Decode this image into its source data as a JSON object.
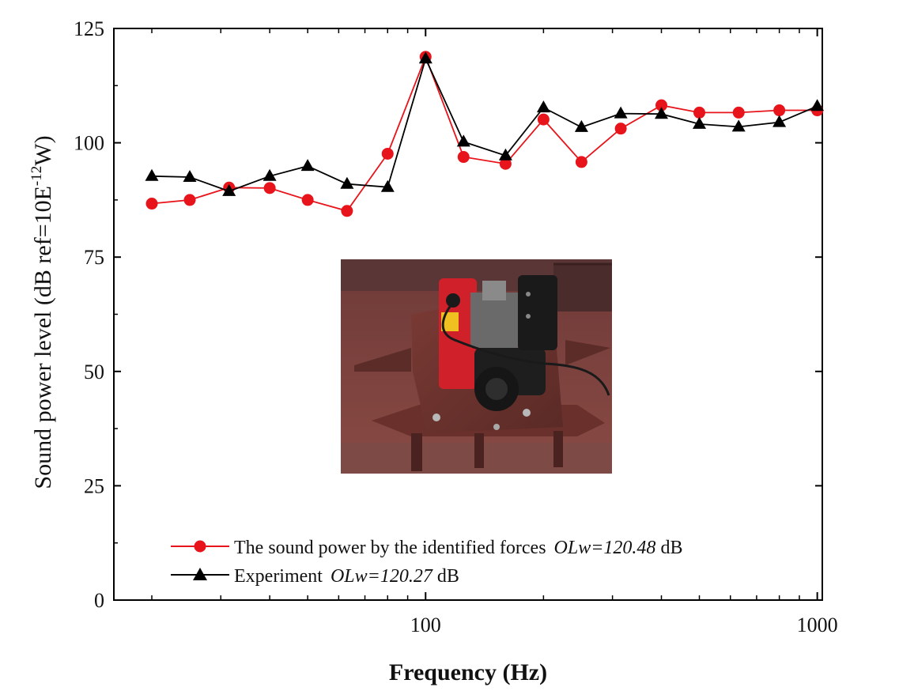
{
  "chart_data": {
    "type": "line",
    "x_scale": "log",
    "xlabel": "Frequency (Hz)",
    "ylabel_parts": {
      "prefix": "Sound power level (dB ref=10E",
      "superscript": "-12",
      "suffix": "W)"
    },
    "xlim": [
      16,
      1030
    ],
    "ylim": [
      0,
      125
    ],
    "x_ticks": [
      100,
      1000
    ],
    "x_tick_labels": [
      "100",
      "1000"
    ],
    "y_ticks": [
      0,
      25,
      50,
      75,
      100,
      125
    ],
    "y_tick_labels": [
      "0",
      "25",
      "50",
      "75",
      "100",
      "125"
    ],
    "x": [
      20,
      25,
      31.5,
      40,
      50,
      63,
      80,
      100,
      125,
      160,
      200,
      250,
      315,
      400,
      500,
      630,
      800,
      1000
    ],
    "series": [
      {
        "name": "The sound power by the identified forces",
        "legend_value": "OLw=120.48",
        "legend_unit": "dB",
        "color": "#e8141b",
        "marker": "circle",
        "values": [
          86.7,
          87.5,
          90.2,
          90.1,
          87.5,
          85.1,
          97.6,
          118.8,
          96.9,
          95.4,
          105.1,
          95.8,
          103.1,
          108.2,
          106.6,
          106.6,
          107.1,
          107.1
        ]
      },
      {
        "name": "Experiment",
        "legend_value": "OLw=120.27",
        "legend_unit": "dB",
        "color": "#000000",
        "marker": "triangle",
        "values": [
          92.7,
          92.5,
          89.4,
          92.7,
          94.9,
          91.0,
          90.3,
          118.4,
          100.2,
          97.2,
          107.7,
          103.4,
          106.4,
          106.3,
          104.1,
          103.5,
          104.5,
          108.0
        ]
      }
    ],
    "legend_position": "bottom-left",
    "grid": false,
    "inset_photo": "engine-on-test-plate-photo"
  }
}
